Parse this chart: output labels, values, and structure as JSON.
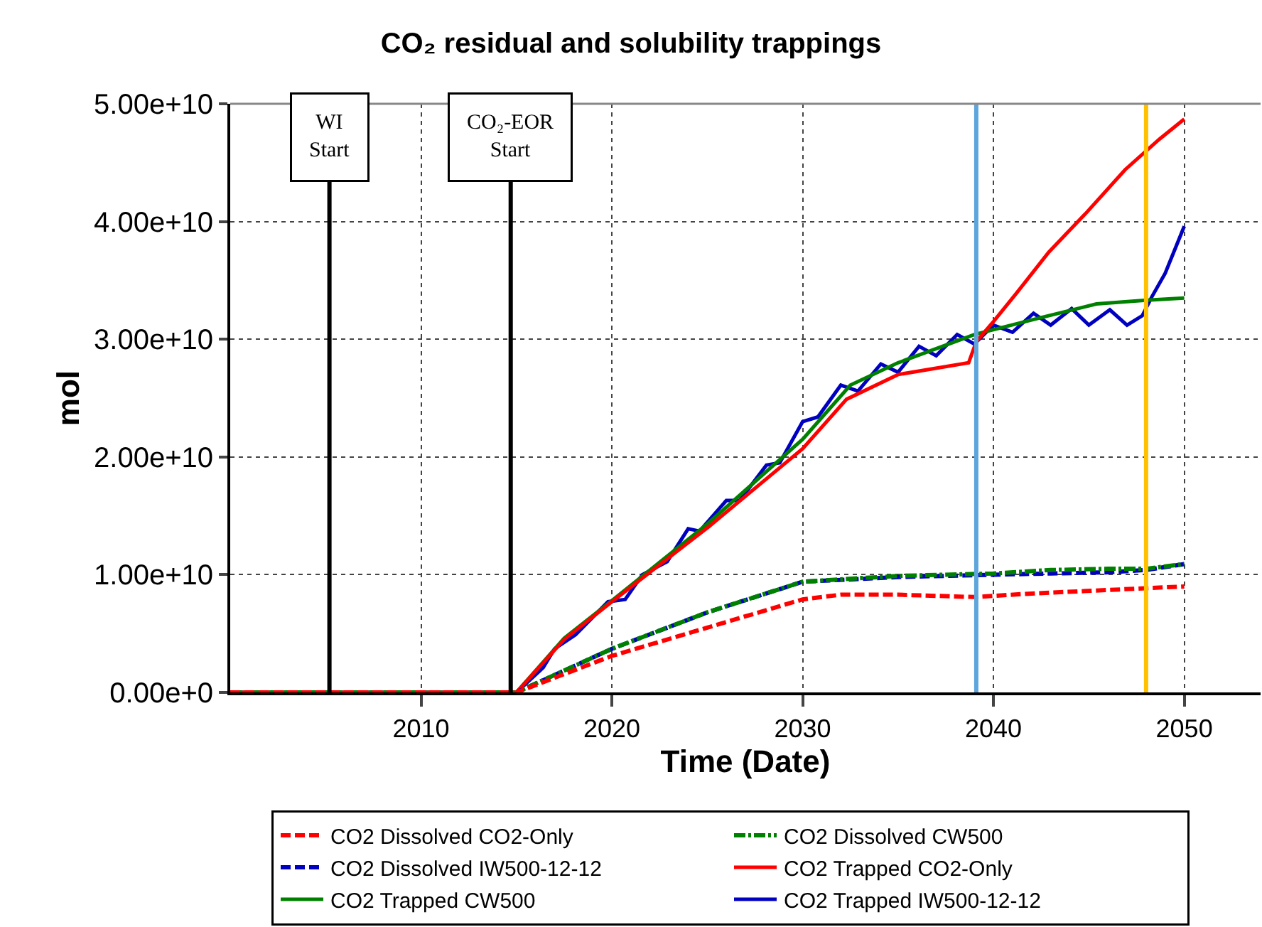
{
  "chart_data": {
    "type": "line",
    "title": "CO₂ residual and solubility trappings",
    "xlabel": "Time (Date)",
    "ylabel": "mol",
    "xlim": [
      2000,
      2054
    ],
    "xticks": [
      2010,
      2020,
      2030,
      2040,
      2050
    ],
    "ylim": [
      0,
      50000000000.0
    ],
    "yticks": [
      {
        "value": 0,
        "label": "0.00e+0"
      },
      {
        "value": 10000000000.0,
        "label": "1.00e+10"
      },
      {
        "value": 20000000000.0,
        "label": "2.00e+10"
      },
      {
        "value": 30000000000.0,
        "label": "3.00e+10"
      },
      {
        "value": 40000000000.0,
        "label": "4.00e+10"
      },
      {
        "value": 50000000000.0,
        "label": "5.00e+10"
      }
    ],
    "grid": true,
    "legend": "bottom",
    "marker": "none",
    "ref_lines": [
      {
        "axis": "x",
        "value": 2005.2,
        "label": "WI\nStart",
        "color": "#000000"
      },
      {
        "axis": "x",
        "value": 2014.7,
        "label": "CO₂-EOR\nStart",
        "color": "#000000"
      },
      {
        "axis": "x",
        "value": 2039.1,
        "color": "#5ea5dc"
      },
      {
        "axis": "x",
        "value": 2048,
        "color": "#ffc000"
      }
    ],
    "series": [
      {
        "name": "CO2 Dissolved CO2-Only",
        "color": "#ff0000",
        "line_style": "dashed",
        "x": [
          2000,
          2015,
          2020,
          2025,
          2030,
          2032,
          2035,
          2039,
          2042,
          2046,
          2050
        ],
        "values": [
          0,
          0,
          3100000000.0,
          5500000000.0,
          7900000000.0,
          8300000000.0,
          8300000000.0,
          8100000000.0,
          8400000000.0,
          8700000000.0,
          9000000000.0
        ]
      },
      {
        "name": "CO2 Dissolved CW500",
        "color": "#008000",
        "line_style": "dashdot",
        "x": [
          2000,
          2015,
          2020,
          2025,
          2030,
          2035,
          2040,
          2043,
          2046,
          2048,
          2050
        ],
        "values": [
          0,
          0,
          3700000000.0,
          6800000000.0,
          9400000000.0,
          9900000000.0,
          10100000000.0,
          10400000000.0,
          10500000000.0,
          10500000000.0,
          10900000000.0
        ]
      },
      {
        "name": "CO2 Dissolved IW500-12-12",
        "color": "#0000c0",
        "line_style": "dashed",
        "x": [
          2000,
          2015,
          2020,
          2025,
          2030,
          2035,
          2040,
          2043,
          2046,
          2048,
          2050
        ],
        "values": [
          0,
          0,
          3700000000.0,
          6800000000.0,
          9400000000.0,
          9800000000.0,
          10000000000.0,
          10100000000.0,
          10200000000.0,
          10400000000.0,
          10900000000.0
        ]
      },
      {
        "name": "CO2 Trapped CO2-Only",
        "color": "#ff0000",
        "line_style": "solid",
        "x": [
          2000,
          2015,
          2017.5,
          2020,
          2025.1,
          2030,
          2032.3,
          2035,
          2038.7,
          2039.1,
          2040,
          2041.2,
          2042.9,
          2044.9,
          2046.9,
          2048.7,
          2050
        ],
        "values": [
          0,
          0,
          4500000000.0,
          7700000000.0,
          14100000000.0,
          20700000000.0,
          24900000000.0,
          27000000000.0,
          28000000000.0,
          29800000000.0,
          31500000000.0,
          33900000000.0,
          37400000000.0,
          40800000000.0,
          44400000000.0,
          47000000000.0,
          48700000000.0
        ]
      },
      {
        "name": "CO2 Trapped CW500",
        "color": "#008000",
        "line_style": "solid",
        "x": [
          2000,
          2015,
          2017.5,
          2020,
          2025,
          2030,
          2032.5,
          2035,
          2039,
          2042.4,
          2045.4,
          2047.9,
          2050
        ],
        "values": [
          0,
          0,
          4600000000.0,
          7800000000.0,
          14300000000.0,
          21500000000.0,
          26100000000.0,
          28000000000.0,
          30400000000.0,
          31800000000.0,
          33000000000.0,
          33300000000.0,
          33500000000.0
        ]
      },
      {
        "name": "CO2 Trapped IW500-12-12",
        "color": "#0000c0",
        "line_style": "solid",
        "x": [
          2000,
          2015,
          2016.4,
          2017,
          2018.1,
          2019.8,
          2020.7,
          2021.6,
          2022.9,
          2024,
          2024.6,
          2026,
          2026.7,
          2028.1,
          2028.8,
          2030,
          2030.8,
          2032,
          2032.9,
          2034.1,
          2035,
          2036.1,
          2037,
          2038.1,
          2039,
          2040,
          2041,
          2042.1,
          2043,
          2044.1,
          2045,
          2046.1,
          2047,
          2047.8,
          2048.3,
          2049,
          2050
        ],
        "values": [
          0,
          0,
          2100000000.0,
          3700000000.0,
          4900000000.0,
          7700000000.0,
          7900000000.0,
          10000000000.0,
          11100000000.0,
          13900000000.0,
          13700000000.0,
          16300000000.0,
          16300000000.0,
          19300000000.0,
          19500000000.0,
          23000000000.0,
          23400000000.0,
          26100000000.0,
          25600000000.0,
          27900000000.0,
          27200000000.0,
          29400000000.0,
          28600000000.0,
          30400000000.0,
          29600000000.0,
          31200000000.0,
          30600000000.0,
          32200000000.0,
          31200000000.0,
          32600000000.0,
          31200000000.0,
          32500000000.0,
          31200000000.0,
          32000000000.0,
          33600000000.0,
          35600000000.0,
          39600000000.0
        ]
      }
    ]
  }
}
